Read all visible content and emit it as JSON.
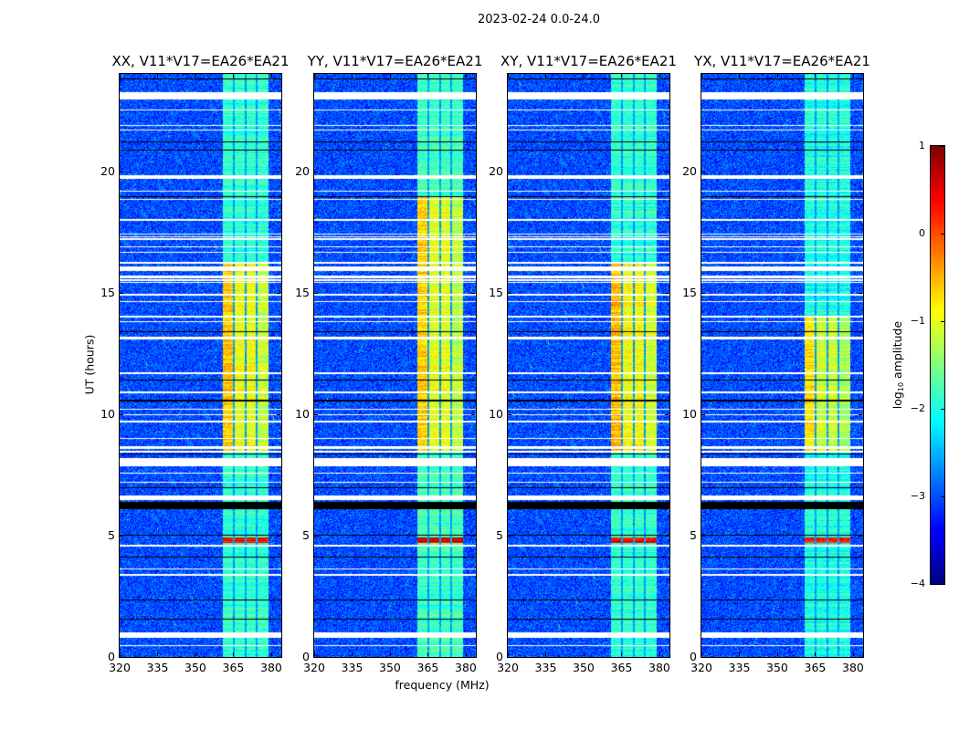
{
  "figure": {
    "suptitle": "2023-02-24 0.0-24.0"
  },
  "chart_data": {
    "type": "heatmap",
    "title": "2023-02-24 0.0-24.0",
    "xlabel": "frequency (MHz)",
    "ylabel": "UT (hours)",
    "xlim": [
      320,
      384
    ],
    "ylim": [
      0,
      24
    ],
    "xticks": [
      320,
      335,
      350,
      365,
      380
    ],
    "yticks": [
      0,
      5,
      10,
      15,
      20
    ],
    "xtick_labels": [
      "320",
      "335",
      "350",
      "365",
      "380"
    ],
    "ytick_labels": [
      "0",
      "5",
      "10",
      "15",
      "20"
    ],
    "colorbar": {
      "label_prefix": "log",
      "label_sub": "10",
      "label_suffix": " amplitude",
      "range": [
        -4,
        1
      ],
      "ticks": [
        1,
        0,
        -1,
        -2,
        -3,
        -4
      ],
      "tick_labels": [
        "1",
        "0",
        "−1",
        "−2",
        "−3",
        "−4"
      ],
      "colormap": "jet"
    },
    "background_level": -3.0,
    "rfi_band_mhz": [
      [
        360.5,
        364.6
      ],
      [
        365.4,
        369.2
      ],
      [
        370.0,
        373.6
      ],
      [
        374.4,
        378.6
      ]
    ],
    "flagged_hours_white": [
      [
        22.95,
        23.25
      ],
      [
        22.5,
        22.55
      ],
      [
        21.88,
        21.93
      ],
      [
        21.68,
        21.73
      ],
      [
        19.7,
        19.85
      ],
      [
        19.18,
        19.23
      ],
      [
        18.83,
        18.88
      ],
      [
        17.98,
        18.06
      ],
      [
        17.2,
        17.25
      ],
      [
        17.3,
        17.35
      ],
      [
        17.4,
        17.45
      ],
      [
        16.88,
        16.93
      ],
      [
        16.66,
        16.71
      ],
      [
        16.22,
        16.27
      ],
      [
        15.9,
        16.08
      ],
      [
        15.4,
        15.45
      ],
      [
        15.5,
        15.55
      ],
      [
        15.62,
        15.7
      ],
      [
        14.88,
        14.95
      ],
      [
        14.63,
        14.68
      ],
      [
        13.8,
        13.85
      ],
      [
        14.0,
        14.08
      ],
      [
        13.1,
        13.2
      ],
      [
        11.68,
        11.73
      ],
      [
        10.88,
        10.93
      ],
      [
        10.18,
        10.24
      ],
      [
        9.98,
        10.02
      ],
      [
        9.68,
        9.73
      ],
      [
        8.98,
        9.03
      ],
      [
        8.45,
        8.5
      ],
      [
        8.6,
        8.7
      ],
      [
        7.88,
        8.2
      ],
      [
        7.57,
        7.62
      ],
      [
        7.18,
        7.23
      ],
      [
        6.48,
        6.66
      ],
      [
        4.58,
        4.62
      ],
      [
        3.63,
        3.68
      ],
      [
        3.36,
        3.44
      ],
      [
        0.8,
        1.02
      ],
      [
        0.48,
        0.52
      ]
    ],
    "flagged_hours_black": [
      [
        23.78,
        23.82
      ],
      [
        21.2,
        21.24
      ],
      [
        20.88,
        20.92
      ],
      [
        18.95,
        19.0
      ],
      [
        13.38,
        13.42
      ],
      [
        11.4,
        11.44
      ],
      [
        10.55,
        10.6
      ],
      [
        8.35,
        8.38
      ],
      [
        6.95,
        7.0
      ],
      [
        6.1,
        6.42
      ],
      [
        5.0,
        5.05
      ],
      [
        4.1,
        4.14
      ],
      [
        2.35,
        2.4
      ],
      [
        1.55,
        1.6
      ]
    ],
    "panels": [
      {
        "title": "XX, V11*V17=EA26*EA21",
        "band_level": -1.9,
        "hot_level": -0.85,
        "hot_hours": [
          8.5,
          16.3
        ],
        "burst_hour": [
          4.7,
          4.95
        ],
        "burst_level": 0.3
      },
      {
        "title": "YY, V11*V17=EA26*EA21",
        "band_level": -1.8,
        "hot_level": -0.9,
        "hot_hours": [
          8.5,
          19.0
        ],
        "burst_hour": [
          4.7,
          4.95
        ],
        "burst_level": 0.5
      },
      {
        "title": "XY, V11*V17=EA26*EA21",
        "band_level": -1.9,
        "hot_level": -0.8,
        "hot_hours": [
          8.5,
          16.3
        ],
        "burst_hour": [
          4.7,
          4.95
        ],
        "burst_level": 0.4
      },
      {
        "title": "YX, V11*V17=EA26*EA21",
        "band_level": -2.0,
        "hot_level": -1.0,
        "hot_hours": [
          8.5,
          14.0
        ],
        "burst_hour": [
          4.7,
          4.95
        ],
        "burst_level": 0.2
      }
    ]
  }
}
